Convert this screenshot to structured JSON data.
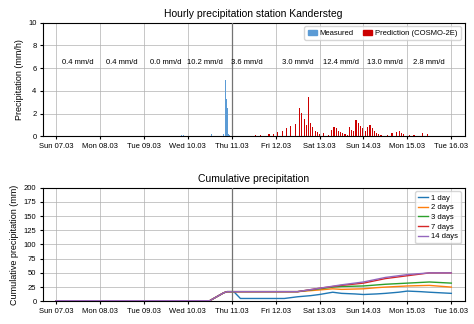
{
  "chart_data": [
    {
      "type": "bar",
      "title": "Hourly precipitation station Kandersteg",
      "ylabel": "Precipitation (mm/h)",
      "xlim": [
        -0.3,
        9.3
      ],
      "xticks": [
        {
          "value": 0,
          "label": "Sun 07.03"
        },
        {
          "value": 1,
          "label": "Mon 08.03"
        },
        {
          "value": 2,
          "label": "Tue 09.03"
        },
        {
          "value": 3,
          "label": "Wed 10.03"
        },
        {
          "value": 4,
          "label": "Thu 11.03"
        },
        {
          "value": 5,
          "label": "Fri 12.03"
        },
        {
          "value": 6,
          "label": "Sat 13.03"
        },
        {
          "value": 7,
          "label": "Sun 14.03"
        },
        {
          "value": 8,
          "label": "Mon 15.03"
        },
        {
          "value": 9,
          "label": "Tue 16.03"
        }
      ],
      "ylim": [
        0,
        10
      ],
      "yticks": [
        0,
        2,
        4,
        6,
        8,
        10
      ],
      "grid": true,
      "legend": "upper right",
      "vline_x": 4.0,
      "annotations": [
        {
          "x": 0.5,
          "y": 6.5,
          "text": "0.4 mm/d"
        },
        {
          "x": 1.5,
          "y": 6.5,
          "text": "0.4 mm/d"
        },
        {
          "x": 2.5,
          "y": 6.5,
          "text": "0.0 mm/d"
        },
        {
          "x": 3.4,
          "y": 6.5,
          "text": "10.2 mm/d"
        },
        {
          "x": 4.35,
          "y": 6.5,
          "text": "3.6 mm/d"
        },
        {
          "x": 5.5,
          "y": 6.5,
          "text": "3.0 mm/d"
        },
        {
          "x": 6.5,
          "y": 6.5,
          "text": "12.4 mm/d"
        },
        {
          "x": 7.5,
          "y": 6.5,
          "text": "13.0 mm/d"
        },
        {
          "x": 8.5,
          "y": 6.5,
          "text": "2.8 mm/d"
        }
      ],
      "series": [
        {
          "name": "Measured",
          "color": "#5b9bd5",
          "x": [
            0.58,
            0.63,
            1.43,
            1.48,
            2.85,
            2.9,
            3.55,
            3.82,
            3.855,
            3.875,
            3.895,
            3.915,
            3.935,
            3.955
          ],
          "values": [
            0.07,
            0.06,
            0.07,
            0.06,
            0.1,
            0.12,
            0.18,
            0.25,
            5.0,
            3.3,
            2.5,
            0.35,
            0.25,
            0.15
          ]
        },
        {
          "name": "Prediction (COSMO-2E)",
          "color": "#cc0000",
          "x": [
            4.55,
            4.65,
            4.85,
            4.95,
            5.05,
            5.15,
            5.25,
            5.35,
            5.45,
            5.55,
            5.6,
            5.65,
            5.7,
            5.75,
            5.8,
            5.85,
            5.9,
            5.95,
            6.0,
            6.1,
            6.2,
            6.28,
            6.33,
            6.38,
            6.43,
            6.48,
            6.53,
            6.58,
            6.63,
            6.68,
            6.73,
            6.78,
            6.83,
            6.88,
            6.93,
            6.98,
            7.05,
            7.1,
            7.15,
            7.2,
            7.25,
            7.3,
            7.35,
            7.4,
            7.55,
            7.65,
            7.75,
            7.82,
            7.87,
            7.92,
            8.05,
            8.15,
            8.25,
            8.35,
            8.45
          ],
          "values": [
            0.15,
            0.12,
            0.18,
            0.25,
            0.35,
            0.5,
            0.7,
            0.9,
            1.1,
            2.5,
            2.1,
            1.5,
            1.0,
            3.5,
            1.2,
            0.8,
            0.5,
            0.35,
            0.2,
            0.28,
            0.15,
            0.6,
            0.8,
            0.7,
            0.5,
            0.4,
            0.3,
            0.2,
            0.15,
            0.8,
            0.6,
            0.5,
            1.4,
            1.2,
            0.9,
            0.7,
            0.5,
            0.8,
            1.0,
            0.7,
            0.5,
            0.3,
            0.2,
            0.15,
            0.1,
            0.3,
            0.4,
            0.5,
            0.3,
            0.2,
            0.15,
            0.1,
            0.08,
            0.3,
            0.2
          ]
        }
      ]
    },
    {
      "type": "line",
      "title": "Cumulative precipitation",
      "ylabel": "Cumulative precipitation (mm)",
      "xlim": [
        -0.3,
        9.3
      ],
      "xticks": [
        {
          "value": 0,
          "label": "Sun 07.03"
        },
        {
          "value": 1,
          "label": "Mon 08.03"
        },
        {
          "value": 2,
          "label": "Tue 09.03"
        },
        {
          "value": 3,
          "label": "Wed 10.03"
        },
        {
          "value": 4,
          "label": "Thu 11.03"
        },
        {
          "value": 5,
          "label": "Fri 12.03"
        },
        {
          "value": 6,
          "label": "Sat 13.03"
        },
        {
          "value": 7,
          "label": "Sun 14.03"
        },
        {
          "value": 8,
          "label": "Mon 15.03"
        },
        {
          "value": 9,
          "label": "Tue 16.03"
        }
      ],
      "ylim": [
        0,
        200
      ],
      "yticks": [
        0,
        25,
        50,
        75,
        100,
        125,
        150,
        175,
        200
      ],
      "grid": true,
      "legend": "upper right",
      "vline_x": 4.0,
      "series": [
        {
          "name": "1 day",
          "x": [
            0,
            0.3,
            0.5,
            1.0,
            1.5,
            2.0,
            2.5,
            3.0,
            3.5,
            3.82,
            3.9,
            4.05,
            4.2,
            4.5,
            4.8,
            5.0,
            5.2,
            5.5,
            5.8,
            6.0,
            6.3,
            6.5,
            6.8,
            7.0,
            7.3,
            7.5,
            7.8,
            8.0,
            8.3,
            8.5,
            9.0
          ],
          "values": [
            1,
            1,
            1,
            1,
            1,
            1,
            1,
            1,
            1,
            15,
            17,
            17,
            5,
            5,
            5,
            5,
            5,
            8,
            10,
            12,
            16,
            14,
            13,
            12,
            13,
            14,
            16,
            18,
            17,
            16,
            14
          ]
        },
        {
          "name": "2 days",
          "x": [
            0,
            0.3,
            0.5,
            1.0,
            1.5,
            2.0,
            2.5,
            3.0,
            3.5,
            3.82,
            3.9,
            4.05,
            4.5,
            5.0,
            5.5,
            6.0,
            6.3,
            6.5,
            7.0,
            7.3,
            7.5,
            8.0,
            8.5,
            9.0
          ],
          "values": [
            1,
            1,
            1,
            1,
            1,
            1,
            1,
            1,
            1,
            15,
            17,
            17,
            17,
            17,
            17,
            20,
            22,
            21,
            22,
            24,
            25,
            27,
            28,
            25
          ]
        },
        {
          "name": "3 days",
          "x": [
            0,
            0.3,
            0.5,
            1.0,
            1.5,
            2.0,
            2.5,
            3.0,
            3.5,
            3.82,
            3.9,
            4.05,
            4.5,
            5.0,
            5.5,
            6.0,
            6.3,
            6.5,
            7.0,
            7.5,
            8.0,
            8.5,
            9.0
          ],
          "values": [
            1,
            1,
            1,
            1,
            1,
            1,
            1,
            1,
            1,
            15,
            17,
            17,
            17,
            17,
            17,
            22,
            25,
            26,
            27,
            30,
            32,
            34,
            32
          ]
        },
        {
          "name": "7 days",
          "x": [
            0,
            0.3,
            0.5,
            1.0,
            1.5,
            2.0,
            2.5,
            3.0,
            3.5,
            3.82,
            3.9,
            4.05,
            4.5,
            5.0,
            5.5,
            6.0,
            6.5,
            7.0,
            7.5,
            8.0,
            8.5,
            9.0
          ],
          "values": [
            1,
            1,
            1,
            1,
            1,
            1,
            1,
            1,
            1,
            15,
            17,
            17,
            17,
            17,
            17,
            23,
            28,
            32,
            40,
            45,
            50,
            50
          ]
        },
        {
          "name": "14 days",
          "x": [
            0,
            0.3,
            0.5,
            1.0,
            1.5,
            2.0,
            2.5,
            3.0,
            3.5,
            3.82,
            3.9,
            4.05,
            4.5,
            5.0,
            5.5,
            6.0,
            6.5,
            7.0,
            7.5,
            8.0,
            8.5,
            9.0
          ],
          "values": [
            1,
            1,
            1,
            1,
            1,
            1,
            1,
            1,
            1,
            15,
            17,
            17,
            17,
            17,
            17,
            23,
            29,
            34,
            42,
            47,
            50,
            50
          ]
        }
      ]
    }
  ]
}
